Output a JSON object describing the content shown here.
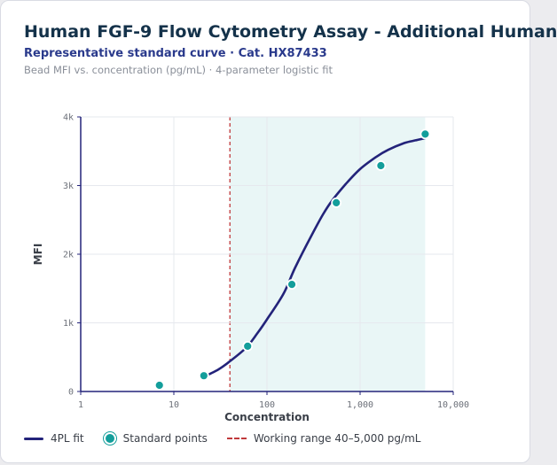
{
  "header": {
    "title": "Human FGF-9 Flow Cytometry Assay - Additional Human",
    "subtitle": "Representative standard curve · Cat. HX87433",
    "description": "Bead MFI vs. concentration (pg/mL) · 4-parameter logistic fit"
  },
  "chart_data": {
    "type": "scatter",
    "xlabel": "Concentration",
    "ylabel": "MFI",
    "x_scale": "log",
    "xlim": [
      1,
      10000
    ],
    "ylim": [
      0,
      4000
    ],
    "x_ticks": [
      {
        "value": 1,
        "label": "1"
      },
      {
        "value": 10,
        "label": "10"
      },
      {
        "value": 100,
        "label": "100"
      },
      {
        "value": 1000,
        "label": "1,000"
      },
      {
        "value": 10000,
        "label": "10,000"
      }
    ],
    "y_ticks": [
      {
        "value": 0,
        "label": "0"
      },
      {
        "value": 1000,
        "label": "1k"
      },
      {
        "value": 2000,
        "label": "2k"
      },
      {
        "value": 3000,
        "label": "3k"
      },
      {
        "value": 4000,
        "label": "4k"
      }
    ],
    "grid": true,
    "working_range": [
      40,
      5000
    ],
    "series": [
      {
        "name": "4PL fit",
        "kind": "line",
        "color": "#23237a",
        "x": [
          20,
          30,
          40,
          60,
          80,
          100,
          150,
          200,
          300,
          400,
          500,
          700,
          1000,
          1500,
          2000,
          3000,
          4000,
          5000
        ],
        "y": [
          200,
          320,
          440,
          640,
          860,
          1050,
          1420,
          1800,
          2270,
          2580,
          2780,
          3020,
          3240,
          3420,
          3520,
          3620,
          3660,
          3690
        ]
      },
      {
        "name": "Standard points",
        "kind": "points",
        "color": "#139e9b",
        "x": [
          7,
          21,
          62,
          185,
          555,
          1670,
          5000
        ],
        "y": [
          90,
          230,
          660,
          1560,
          2750,
          3290,
          3750
        ]
      }
    ],
    "legend_position": "bottom-left"
  },
  "legend": {
    "fit_label": "4PL fit",
    "points_label": "Standard points",
    "range_label": "Working range 40–5,000 pg/mL"
  },
  "colors": {
    "fit": "#23237a",
    "points": "#139e9b",
    "range_line": "#c0393b",
    "range_fill": "#e9f6f6"
  }
}
